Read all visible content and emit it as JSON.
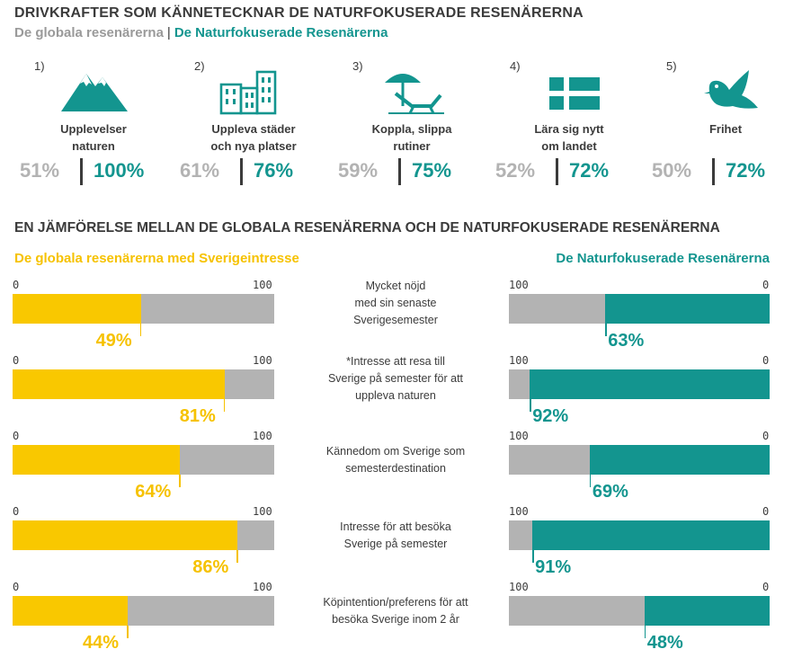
{
  "header": {
    "title": "DRIVKRAFTER SOM KÄNNETECKNAR DE NATURFOKUSERADE RESENÄRERNA",
    "subtitle_global": "De globala resenärerna",
    "subtitle_sep": "|",
    "subtitle_target": "De Naturfokuserade Resenärerna"
  },
  "drivers": [
    {
      "num": "1)",
      "line1": "Upplevelser",
      "line2": "naturen",
      "global": "51%",
      "target": "100%",
      "icon": "mountain-icon"
    },
    {
      "num": "2)",
      "line1": "Uppleva städer",
      "line2": "och nya platser",
      "global": "61%",
      "target": "76%",
      "icon": "city-buildings-icon"
    },
    {
      "num": "3)",
      "line1": "Koppla, slippa",
      "line2": "rutiner",
      "global": "59%",
      "target": "75%",
      "icon": "beach-chair-umbrella-icon"
    },
    {
      "num": "4)",
      "line1": "Lära sig nytt",
      "line2": "om landet",
      "global": "52%",
      "target": "72%",
      "icon": "swedish-flag-icon"
    },
    {
      "num": "5)",
      "line1": "Frihet",
      "line2": "",
      "global": "50%",
      "target": "72%",
      "icon": "bird-icon"
    }
  ],
  "comparison": {
    "title": "EN JÄMFÖRELSE MELLAN DE GLOBALA RESENÄRERNA OCH DE NATURFOKUSERADE RESENÄRERNA",
    "legend_left": "De globala resenärerna med Sverigeintresse",
    "legend_right": "De Naturfokuserade Resenärerna",
    "tick_zero": "0",
    "tick_hundred": "100"
  },
  "chart_data": {
    "type": "bar",
    "orientation": "horizontal",
    "categories": [
      "Mycket nöjd med sin senaste Sverigesemester",
      "*Intresse att resa till Sverige på semester för att uppleva naturen",
      "Kännedom om Sverige som semesterdestination",
      "Intresse för att besöka Sverige på semester",
      "Köpintention/preferens för att besöka Sverige inom 2 år"
    ],
    "category_lines": [
      [
        "Mycket nöjd",
        "med sin senaste",
        "Sverigesemester"
      ],
      [
        "*Intresse att resa till",
        "Sverige på semester för att",
        "uppleva naturen"
      ],
      [
        "Kännedom om Sverige som",
        "semesterdestination"
      ],
      [
        "Intresse för att besöka",
        "Sverige på semester"
      ],
      [
        "Köpintention/preferens för att",
        "besöka Sverige inom 2 år"
      ]
    ],
    "series": [
      {
        "name": "De globala resenärerna med Sverigeintresse",
        "values": [
          49,
          81,
          64,
          86,
          44
        ],
        "labels": [
          "49%",
          "81%",
          "64%",
          "86%",
          "44%"
        ],
        "color": "#f9c800"
      },
      {
        "name": "De Naturfokuserade Resenärerna",
        "values": [
          63,
          92,
          69,
          91,
          48
        ],
        "labels": [
          "63%",
          "92%",
          "69%",
          "91%",
          "48%"
        ],
        "color": "#13958f"
      }
    ],
    "xlim": [
      0,
      100
    ],
    "background_color": "#b3b3b3"
  }
}
